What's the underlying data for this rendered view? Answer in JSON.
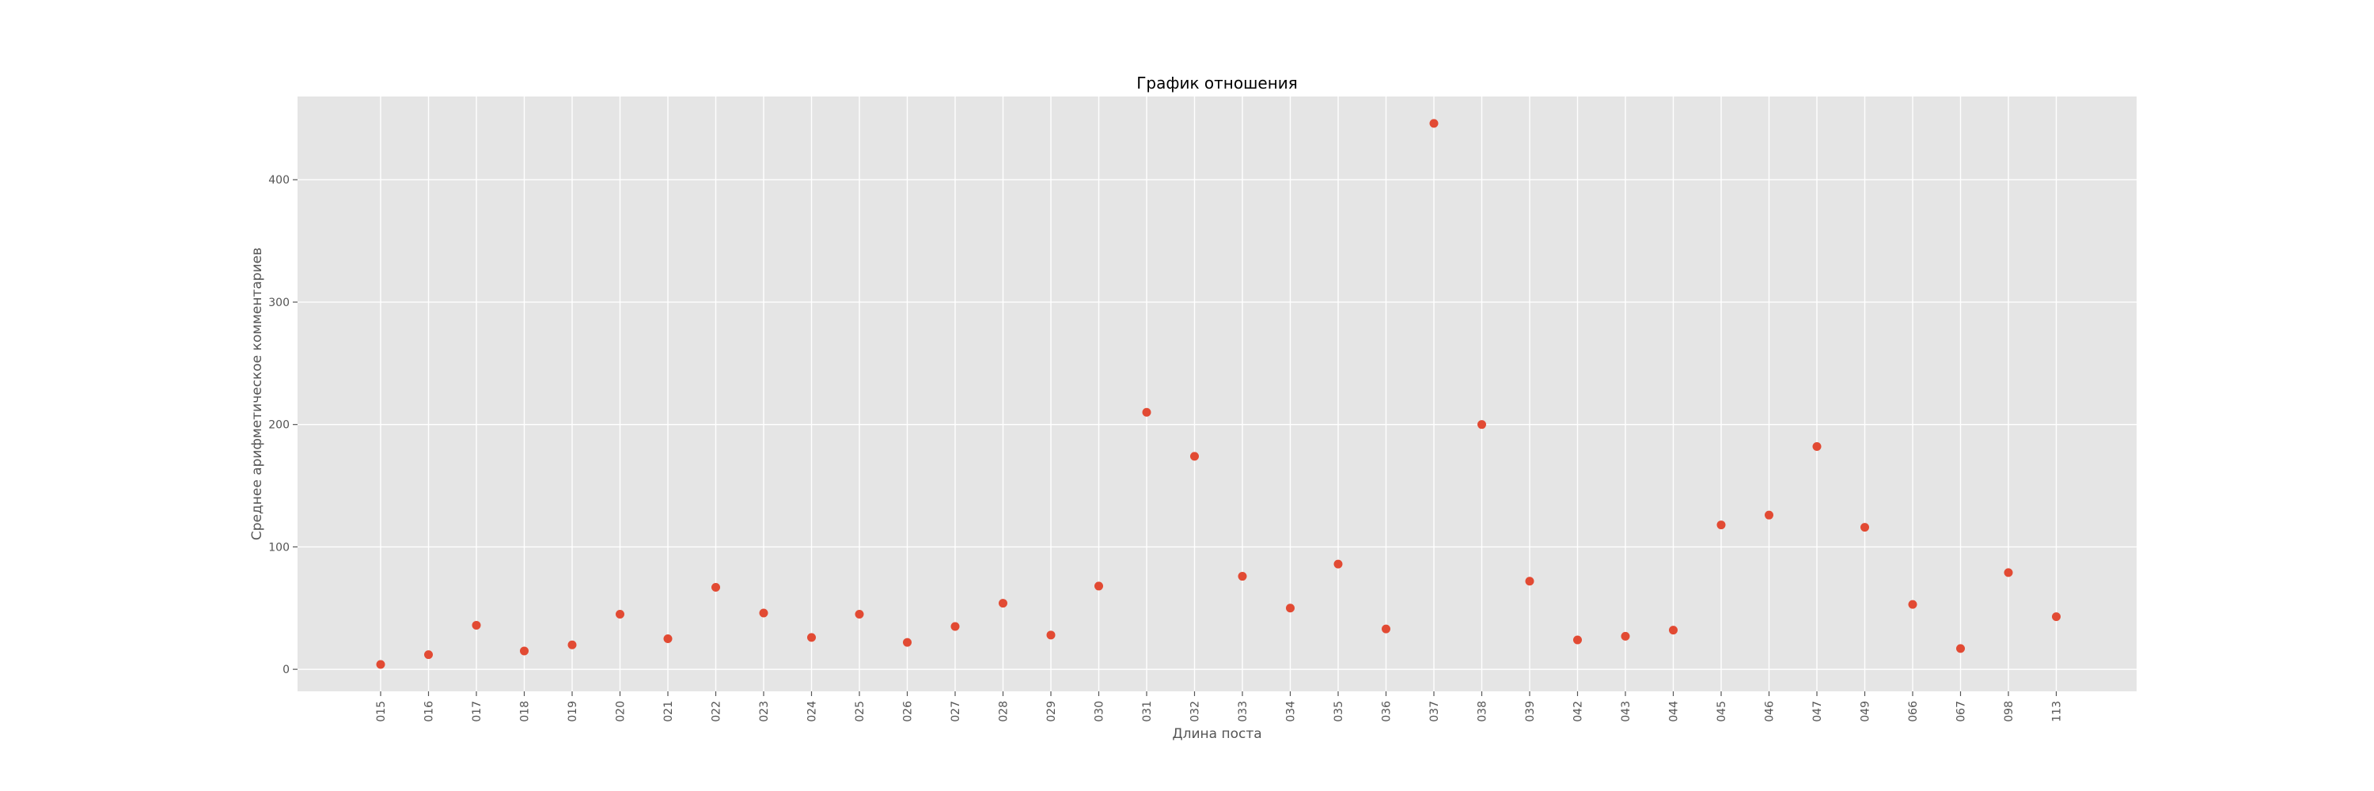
{
  "chart_data": {
    "type": "scatter",
    "title": "График отношения",
    "xlabel": "Длина поста",
    "ylabel": "Среднее арифметическое комментариев",
    "categories": [
      "015",
      "016",
      "017",
      "018",
      "019",
      "020",
      "021",
      "022",
      "023",
      "024",
      "025",
      "026",
      "027",
      "028",
      "029",
      "030",
      "031",
      "032",
      "033",
      "034",
      "035",
      "036",
      "037",
      "038",
      "039",
      "042",
      "043",
      "044",
      "045",
      "046",
      "047",
      "049",
      "066",
      "067",
      "098",
      "113"
    ],
    "values": [
      4,
      12,
      36,
      15,
      20,
      45,
      25,
      67,
      46,
      26,
      45,
      22,
      35,
      54,
      28,
      68,
      210,
      174,
      76,
      50,
      86,
      33,
      446,
      200,
      72,
      24,
      27,
      32,
      118,
      126,
      182,
      116,
      53,
      17,
      79,
      43
    ],
    "yticks": [
      0,
      100,
      200,
      300,
      400
    ],
    "ylim": [
      -18,
      468
    ],
    "grid": true,
    "colors": {
      "background": "#e5e5e5",
      "grid": "#ffffff",
      "marker": "#e24a33"
    }
  }
}
